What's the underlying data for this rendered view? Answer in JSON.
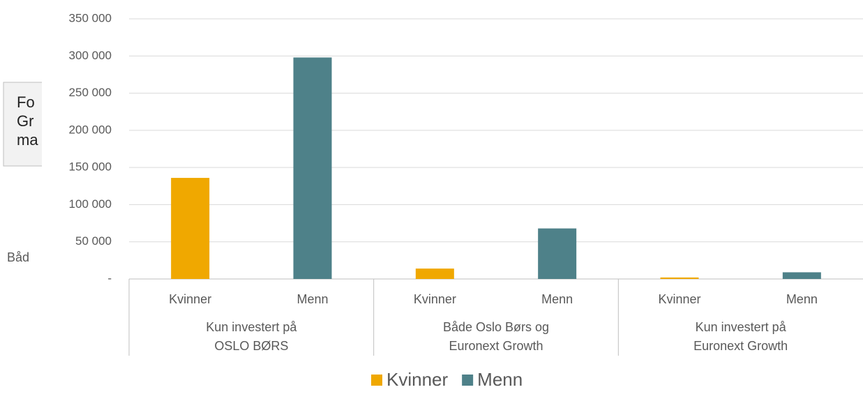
{
  "background": {
    "box_lines": [
      "Fo",
      "Gr",
      "ma"
    ],
    "side_text": "Båd"
  },
  "chart_data": {
    "type": "bar",
    "categories": [
      "Kvinner",
      "Menn",
      "Kvinner",
      "Menn",
      "Kvinner",
      "Menn"
    ],
    "groups": [
      [
        "Kun investert på",
        "OSLO BØRS"
      ],
      [
        "Både Oslo Børs og",
        "Euronext Growth"
      ],
      [
        "Kun investert på",
        "Euronext Growth"
      ]
    ],
    "series": [
      {
        "name": "Kvinner",
        "color": "#f0a800",
        "values": [
          136000,
          null,
          14000,
          null,
          2000,
          null
        ]
      },
      {
        "name": "Menn",
        "color": "#4e8189",
        "values": [
          null,
          298000,
          null,
          68000,
          null,
          9000
        ]
      }
    ],
    "ylim": [
      0,
      350000
    ],
    "yticks": [
      {
        "value": 0,
        "label": "-"
      },
      {
        "value": 50000,
        "label": "50 000"
      },
      {
        "value": 100000,
        "label": "100 000"
      },
      {
        "value": 150000,
        "label": "150 000"
      },
      {
        "value": 200000,
        "label": "200 000"
      },
      {
        "value": 250000,
        "label": "250 000"
      },
      {
        "value": 300000,
        "label": "300 000"
      },
      {
        "value": 350000,
        "label": "350 000"
      }
    ],
    "grid": true,
    "legend": "bottom"
  }
}
